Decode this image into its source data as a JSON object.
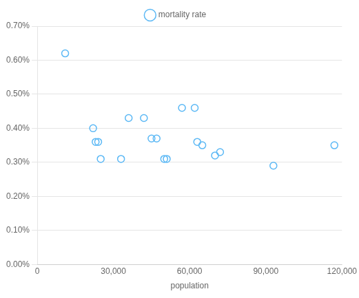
{
  "chart_data": {
    "type": "scatter",
    "x": [
      11000,
      22000,
      23000,
      24000,
      25000,
      33000,
      36000,
      42000,
      45000,
      47000,
      50000,
      51000,
      57000,
      62000,
      63000,
      65000,
      70000,
      72000,
      93000,
      117000
    ],
    "series": [
      {
        "name": "mortality rate",
        "color": "#5bb8f5",
        "marker": "circle",
        "values": [
          0.0062,
          0.004,
          0.0036,
          0.0036,
          0.0031,
          0.0031,
          0.0043,
          0.0043,
          0.0037,
          0.0037,
          0.0031,
          0.0031,
          0.0046,
          0.0046,
          0.0036,
          0.0035,
          0.0032,
          0.0033,
          0.0029,
          0.0035
        ]
      }
    ],
    "xlabel": "population",
    "xlim": [
      0,
      120000
    ],
    "xticks": [
      0,
      {
        "value": 30000,
        "label": "30,000"
      },
      {
        "value": 60000,
        "label": "60,000"
      },
      {
        "value": 90000,
        "label": "90,000"
      },
      {
        "value": 120000,
        "label": "120,000"
      }
    ],
    "ylim": [
      0.0,
      0.007
    ],
    "yticks": [
      {
        "value": 0.0,
        "label": "0.00%"
      },
      {
        "value": 0.001,
        "label": "0.10%"
      },
      {
        "value": 0.002,
        "label": "0.20%"
      },
      {
        "value": 0.003,
        "label": "0.30%"
      },
      {
        "value": 0.004,
        "label": "0.40%"
      },
      {
        "value": 0.005,
        "label": "0.50%"
      },
      {
        "value": 0.006,
        "label": "0.60%"
      },
      {
        "value": 0.007,
        "label": "0.70%"
      }
    ],
    "grid": "y",
    "legend": "top"
  }
}
